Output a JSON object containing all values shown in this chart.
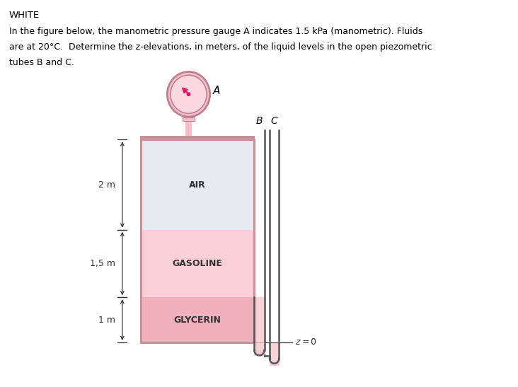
{
  "title_text": "WHITE",
  "desc_line1": "In the figure below, the manometric pressure gauge A indicates 1.5 kPa (manometric). Fluids",
  "desc_line2": "are at 20°C.  Determine the z-elevations, in meters, of the liquid levels in the open piezometric",
  "desc_line3": "tubes B and C.",
  "fig_width": 7.32,
  "fig_height": 5.47,
  "bg_color": "#ffffff",
  "air_color": "#e8eaf0",
  "gasoline_color": "#f9d0d8",
  "glycerin_color": "#f0b0bc",
  "tank_border_color": "#c89098",
  "dim_color": "#333333",
  "gauge_fill": "#f5c0cc",
  "gauge_border": "#c08090",
  "gauge_inner_fill": "#f9d8df",
  "needle_color": "#dd1166",
  "tube_wall_color": "#555555",
  "fluid_b_color": "#f5c8d0",
  "fluid_c_color": "#f5c8d0"
}
